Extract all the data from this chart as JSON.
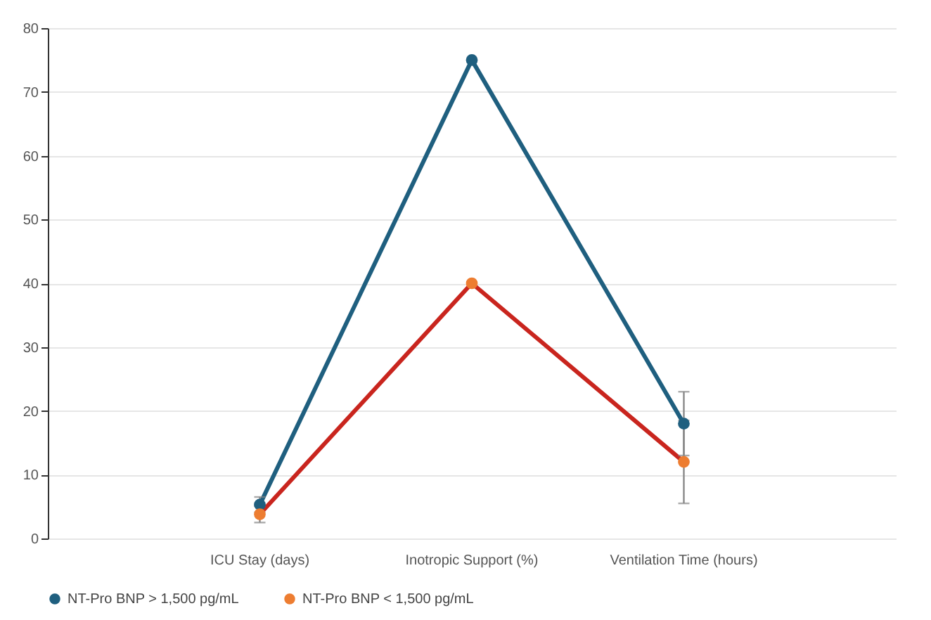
{
  "chart_data": {
    "type": "line",
    "categories": [
      "ICU Stay (days)",
      "Inotropic Support (%)",
      "Ventilation Time (hours)"
    ],
    "series": [
      {
        "name": "NT-Pro BNP > 1,500 pg/mL",
        "color": "#1f5f7f",
        "values": [
          5.3,
          75,
          18
        ],
        "errors": [
          1.2,
          null,
          5
        ]
      },
      {
        "name": "NT-Pro BNP < 1,500 pg/mL",
        "color": "#c9251e",
        "colors": [
          "#ed7d31",
          "#ed7d31",
          "#ed7d31"
        ],
        "values": [
          3.8,
          40,
          12
        ],
        "errors": [
          1.3,
          null,
          6.5
        ]
      }
    ],
    "ylim": [
      0,
      80
    ],
    "yticks": [
      0,
      10,
      20,
      30,
      40,
      50,
      60,
      70,
      80
    ],
    "grid": "y",
    "legend": "bottom",
    "marker": "circle",
    "line_style": "solid"
  }
}
